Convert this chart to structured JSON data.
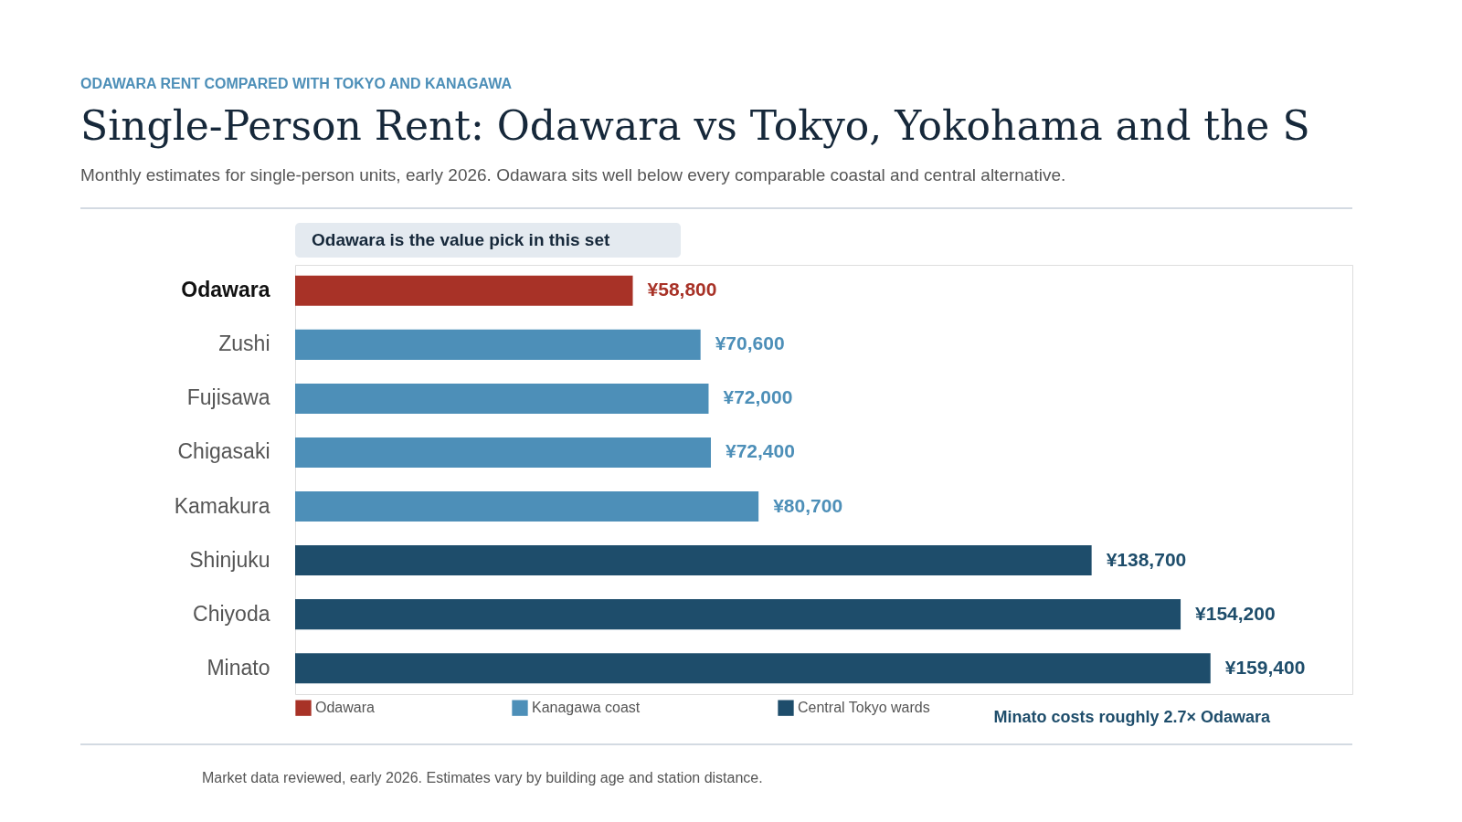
{
  "chart_data": {
    "type": "bar",
    "orientation": "horizontal",
    "title": "Single-Person Rent: Odawara vs Tokyo, Yokohama and the S",
    "subtitle": "Monthly estimates for single-person units, early 2026. Odawara sits well below every comparable coastal and central alternative.",
    "annotations": [
      "ODAWARA RENT COMPARED WITH TOKYO AND KANAGAWA",
      "Odawara is the value pick in this set",
      "Minato costs roughly 2.7× Odawara",
      "Market data reviewed, early 2026. Estimates vary by building age and station distance."
    ],
    "categories": [
      "Odawara",
      "Zushi",
      "Fujisawa",
      "Chigasaki",
      "Kamakura",
      "Shinjuku",
      "Chiyoda",
      "Minato"
    ],
    "series": [
      {
        "name": "Odawara",
        "color": "#a83227",
        "values": [
          58800,
          null,
          null,
          null,
          null,
          null,
          null,
          null
        ],
        "value_labels": [
          "¥58,800",
          null,
          null,
          null,
          null,
          null,
          null,
          null
        ]
      },
      {
        "name": "Kanagawa coast",
        "color": "#4d8fb8",
        "values": [
          null,
          70600,
          72000,
          72400,
          80700,
          null,
          null,
          null
        ],
        "value_labels": [
          null,
          "¥70,600",
          "¥72,000",
          "¥72,400",
          "¥80,700",
          null,
          null,
          null
        ]
      },
      {
        "name": "Central Tokyo wards",
        "color": "#1e4d6b",
        "values": [
          null,
          null,
          null,
          null,
          null,
          138700,
          154200,
          159400
        ],
        "value_labels": [
          null,
          null,
          null,
          null,
          null,
          "¥138,700",
          "¥154,200",
          "¥159,400"
        ]
      }
    ],
    "legend": "bottom",
    "grid": false,
    "tick_labels": "y"
  }
}
